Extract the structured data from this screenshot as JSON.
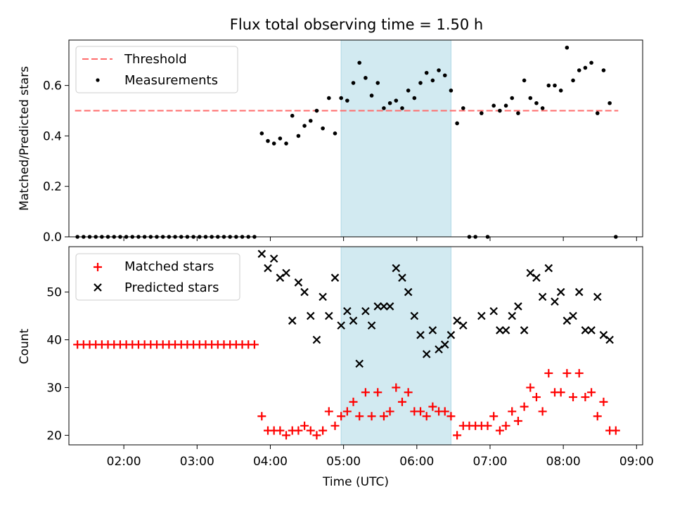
{
  "figure": {
    "title": "Flux total observing time = 1.50 h",
    "highlight_color": "#add8e6",
    "colors": {
      "threshold": "#ff6b6b",
      "measurements": "#000000",
      "matched": "#ff0000",
      "predicted": "#000000"
    }
  },
  "chart_data": [
    {
      "type": "scatter",
      "ylabel": "Matched/Predicted stars",
      "xlim": [
        "01:15",
        "09:05"
      ],
      "ylim": [
        0,
        0.78
      ],
      "yticks": [
        "0.0",
        "0.2",
        "0.4",
        "0.6"
      ],
      "highlight_span": [
        "04:58",
        "06:28"
      ],
      "legend": {
        "position": "top-left",
        "entries": [
          "Threshold",
          "Measurements"
        ]
      },
      "threshold": {
        "name": "Threshold",
        "y": 0.5,
        "x_range": [
          "01:20",
          "08:45"
        ],
        "style": "dashed"
      },
      "measurements": {
        "name": "Measurements",
        "points": [
          [
            "01:22",
            0
          ],
          [
            "01:27",
            0
          ],
          [
            "01:32",
            0
          ],
          [
            "01:37",
            0
          ],
          [
            "01:42",
            0
          ],
          [
            "01:47",
            0
          ],
          [
            "01:52",
            0
          ],
          [
            "01:57",
            0
          ],
          [
            "02:02",
            0
          ],
          [
            "02:07",
            0
          ],
          [
            "02:12",
            0
          ],
          [
            "02:17",
            0
          ],
          [
            "02:22",
            0
          ],
          [
            "02:27",
            0
          ],
          [
            "02:32",
            0
          ],
          [
            "02:37",
            0
          ],
          [
            "02:42",
            0
          ],
          [
            "02:47",
            0
          ],
          [
            "02:52",
            0
          ],
          [
            "02:57",
            0
          ],
          [
            "03:02",
            0
          ],
          [
            "03:07",
            0
          ],
          [
            "03:12",
            0
          ],
          [
            "03:17",
            0
          ],
          [
            "03:22",
            0
          ],
          [
            "03:27",
            0
          ],
          [
            "03:32",
            0
          ],
          [
            "03:37",
            0
          ],
          [
            "03:42",
            0
          ],
          [
            "03:47",
            0
          ],
          [
            "03:53",
            0.41
          ],
          [
            "03:58",
            0.38
          ],
          [
            "04:03",
            0.37
          ],
          [
            "04:08",
            0.39
          ],
          [
            "04:13",
            0.37
          ],
          [
            "04:18",
            0.48
          ],
          [
            "04:23",
            0.4
          ],
          [
            "04:28",
            0.44
          ],
          [
            "04:33",
            0.46
          ],
          [
            "04:38",
            0.5
          ],
          [
            "04:43",
            0.43
          ],
          [
            "04:48",
            0.55
          ],
          [
            "04:53",
            0.41
          ],
          [
            "04:58",
            0.55
          ],
          [
            "05:03",
            0.54
          ],
          [
            "05:08",
            0.61
          ],
          [
            "05:13",
            0.69
          ],
          [
            "05:18",
            0.63
          ],
          [
            "05:23",
            0.56
          ],
          [
            "05:28",
            0.61
          ],
          [
            "05:33",
            0.51
          ],
          [
            "05:38",
            0.53
          ],
          [
            "05:43",
            0.54
          ],
          [
            "05:48",
            0.51
          ],
          [
            "05:53",
            0.58
          ],
          [
            "05:58",
            0.55
          ],
          [
            "06:03",
            0.61
          ],
          [
            "06:08",
            0.65
          ],
          [
            "06:13",
            0.62
          ],
          [
            "06:18",
            0.66
          ],
          [
            "06:23",
            0.64
          ],
          [
            "06:28",
            0.58
          ],
          [
            "06:33",
            0.45
          ],
          [
            "06:38",
            0.51
          ],
          [
            "06:43",
            0
          ],
          [
            "06:48",
            0
          ],
          [
            "06:53",
            0.49
          ],
          [
            "06:58",
            0
          ],
          [
            "07:03",
            0.52
          ],
          [
            "07:08",
            0.5
          ],
          [
            "07:13",
            0.52
          ],
          [
            "07:18",
            0.55
          ],
          [
            "07:23",
            0.49
          ],
          [
            "07:28",
            0.62
          ],
          [
            "07:33",
            0.55
          ],
          [
            "07:38",
            0.53
          ],
          [
            "07:43",
            0.51
          ],
          [
            "07:48",
            0.6
          ],
          [
            "07:53",
            0.6
          ],
          [
            "07:58",
            0.58
          ],
          [
            "08:03",
            0.75
          ],
          [
            "08:08",
            0.62
          ],
          [
            "08:13",
            0.66
          ],
          [
            "08:18",
            0.67
          ],
          [
            "08:23",
            0.69
          ],
          [
            "08:28",
            0.49
          ],
          [
            "08:33",
            0.66
          ],
          [
            "08:38",
            0.53
          ],
          [
            "08:43",
            0
          ]
        ]
      }
    },
    {
      "type": "scatter",
      "xlabel": "Time (UTC)",
      "ylabel": "Count",
      "xlim": [
        "01:15",
        "09:05"
      ],
      "ylim": [
        18,
        59.5
      ],
      "xticks": [
        "02:00",
        "03:00",
        "04:00",
        "05:00",
        "06:00",
        "07:00",
        "08:00",
        "09:00"
      ],
      "yticks": [
        "20",
        "30",
        "40",
        "50"
      ],
      "highlight_span": [
        "04:58",
        "06:28"
      ],
      "legend": {
        "position": "top-left",
        "entries": [
          "Matched stars",
          "Predicted stars"
        ]
      },
      "series": [
        {
          "name": "Matched stars",
          "marker": "plus",
          "points": [
            [
              "01:22",
              39
            ],
            [
              "01:27",
              39
            ],
            [
              "01:32",
              39
            ],
            [
              "01:37",
              39
            ],
            [
              "01:42",
              39
            ],
            [
              "01:47",
              39
            ],
            [
              "01:52",
              39
            ],
            [
              "01:57",
              39
            ],
            [
              "02:02",
              39
            ],
            [
              "02:07",
              39
            ],
            [
              "02:12",
              39
            ],
            [
              "02:17",
              39
            ],
            [
              "02:22",
              39
            ],
            [
              "02:27",
              39
            ],
            [
              "02:32",
              39
            ],
            [
              "02:37",
              39
            ],
            [
              "02:42",
              39
            ],
            [
              "02:47",
              39
            ],
            [
              "02:52",
              39
            ],
            [
              "02:57",
              39
            ],
            [
              "03:02",
              39
            ],
            [
              "03:07",
              39
            ],
            [
              "03:12",
              39
            ],
            [
              "03:17",
              39
            ],
            [
              "03:22",
              39
            ],
            [
              "03:27",
              39
            ],
            [
              "03:32",
              39
            ],
            [
              "03:37",
              39
            ],
            [
              "03:42",
              39
            ],
            [
              "03:47",
              39
            ],
            [
              "03:53",
              24
            ],
            [
              "03:58",
              21
            ],
            [
              "04:03",
              21
            ],
            [
              "04:08",
              21
            ],
            [
              "04:13",
              20
            ],
            [
              "04:18",
              21
            ],
            [
              "04:23",
              21
            ],
            [
              "04:28",
              22
            ],
            [
              "04:33",
              21
            ],
            [
              "04:38",
              20
            ],
            [
              "04:43",
              21
            ],
            [
              "04:48",
              25
            ],
            [
              "04:53",
              22
            ],
            [
              "04:58",
              24
            ],
            [
              "05:03",
              25
            ],
            [
              "05:08",
              27
            ],
            [
              "05:13",
              24
            ],
            [
              "05:18",
              29
            ],
            [
              "05:23",
              24
            ],
            [
              "05:28",
              29
            ],
            [
              "05:33",
              24
            ],
            [
              "05:38",
              25
            ],
            [
              "05:43",
              30
            ],
            [
              "05:48",
              27
            ],
            [
              "05:53",
              29
            ],
            [
              "05:58",
              25
            ],
            [
              "06:03",
              25
            ],
            [
              "06:08",
              24
            ],
            [
              "06:13",
              26
            ],
            [
              "06:18",
              25
            ],
            [
              "06:23",
              25
            ],
            [
              "06:28",
              24
            ],
            [
              "06:33",
              20
            ],
            [
              "06:38",
              22
            ],
            [
              "06:43",
              22
            ],
            [
              "06:48",
              22
            ],
            [
              "06:53",
              22
            ],
            [
              "06:58",
              22
            ],
            [
              "07:03",
              24
            ],
            [
              "07:08",
              21
            ],
            [
              "07:13",
              22
            ],
            [
              "07:18",
              25
            ],
            [
              "07:23",
              23
            ],
            [
              "07:28",
              26
            ],
            [
              "07:33",
              30
            ],
            [
              "07:38",
              28
            ],
            [
              "07:43",
              25
            ],
            [
              "07:48",
              33
            ],
            [
              "07:53",
              29
            ],
            [
              "07:58",
              29
            ],
            [
              "08:03",
              33
            ],
            [
              "08:08",
              28
            ],
            [
              "08:13",
              33
            ],
            [
              "08:18",
              28
            ],
            [
              "08:23",
              29
            ],
            [
              "08:28",
              24
            ],
            [
              "08:33",
              27
            ],
            [
              "08:38",
              21
            ],
            [
              "08:43",
              21
            ]
          ]
        },
        {
          "name": "Predicted stars",
          "marker": "x",
          "points": [
            [
              "03:53",
              58
            ],
            [
              "03:58",
              55
            ],
            [
              "04:03",
              57
            ],
            [
              "04:08",
              53
            ],
            [
              "04:13",
              54
            ],
            [
              "04:18",
              44
            ],
            [
              "04:23",
              52
            ],
            [
              "04:28",
              50
            ],
            [
              "04:33",
              45
            ],
            [
              "04:38",
              40
            ],
            [
              "04:43",
              49
            ],
            [
              "04:48",
              45
            ],
            [
              "04:53",
              53
            ],
            [
              "04:58",
              43
            ],
            [
              "05:03",
              46
            ],
            [
              "05:08",
              44
            ],
            [
              "05:13",
              35
            ],
            [
              "05:18",
              46
            ],
            [
              "05:23",
              43
            ],
            [
              "05:28",
              47
            ],
            [
              "05:33",
              47
            ],
            [
              "05:38",
              47
            ],
            [
              "05:43",
              55
            ],
            [
              "05:48",
              53
            ],
            [
              "05:53",
              50
            ],
            [
              "05:58",
              45
            ],
            [
              "06:03",
              41
            ],
            [
              "06:08",
              37
            ],
            [
              "06:13",
              42
            ],
            [
              "06:18",
              38
            ],
            [
              "06:23",
              39
            ],
            [
              "06:28",
              41
            ],
            [
              "06:33",
              44
            ],
            [
              "06:38",
              43
            ],
            [
              "06:53",
              45
            ],
            [
              "07:03",
              46
            ],
            [
              "07:08",
              42
            ],
            [
              "07:13",
              42
            ],
            [
              "07:18",
              45
            ],
            [
              "07:23",
              47
            ],
            [
              "07:28",
              42
            ],
            [
              "07:33",
              54
            ],
            [
              "07:38",
              53
            ],
            [
              "07:43",
              49
            ],
            [
              "07:48",
              55
            ],
            [
              "07:53",
              48
            ],
            [
              "07:58",
              50
            ],
            [
              "08:03",
              44
            ],
            [
              "08:08",
              45
            ],
            [
              "08:13",
              50
            ],
            [
              "08:18",
              42
            ],
            [
              "08:23",
              42
            ],
            [
              "08:28",
              49
            ],
            [
              "08:33",
              41
            ],
            [
              "08:38",
              40
            ]
          ]
        }
      ]
    }
  ]
}
